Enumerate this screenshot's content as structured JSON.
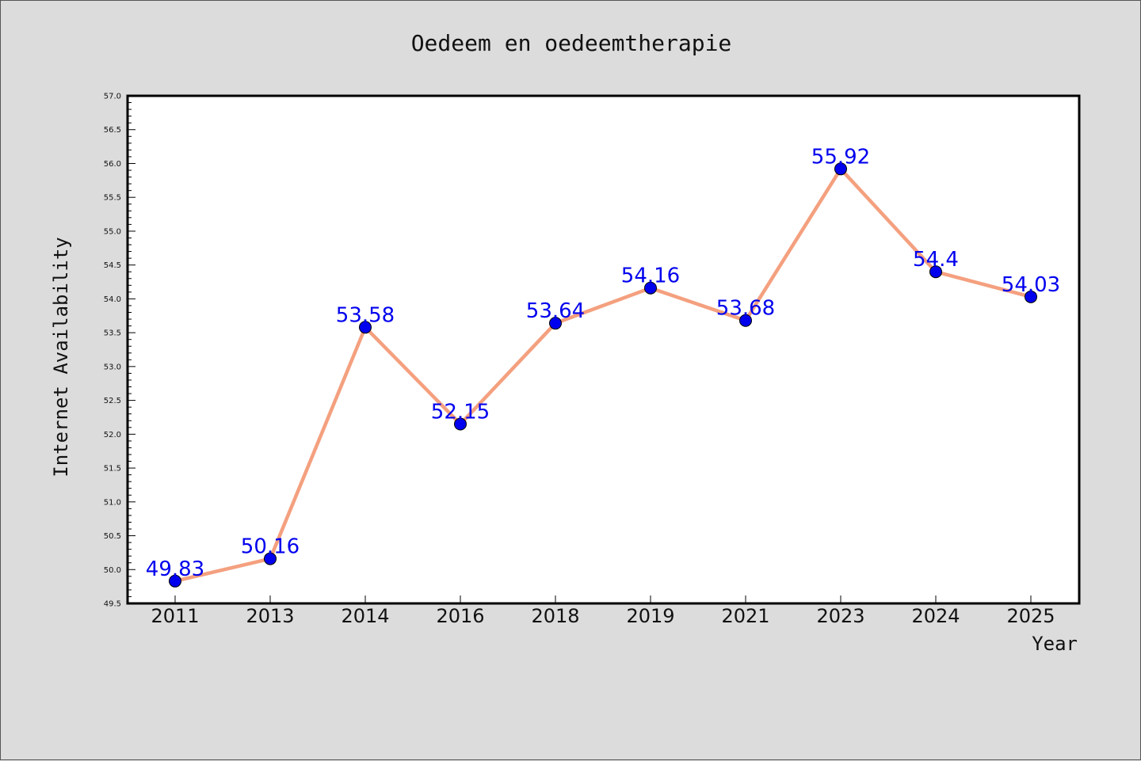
{
  "chart_data": {
    "type": "line",
    "title": "Oedeem en oedeemtherapie",
    "xlabel": "Year",
    "ylabel": "Internet Availability",
    "categories": [
      "2011",
      "2013",
      "2014",
      "2016",
      "2018",
      "2019",
      "2021",
      "2023",
      "2024",
      "2025"
    ],
    "series": [
      {
        "values": [
          49.83,
          50.16,
          53.58,
          52.15,
          53.64,
          54.16,
          53.68,
          55.92,
          54.4,
          54.03
        ],
        "labels": [
          "49.83",
          "50.16",
          "53.58",
          "52.15",
          "53.64",
          "54.16",
          "53.68",
          "55.92",
          "54.4",
          "54.03"
        ],
        "line_color": "#f4a07f",
        "marker_color": "#0000ee",
        "label_color": "#0000ee"
      }
    ],
    "ylim": [
      49.5,
      57.0
    ],
    "yticks": [
      "49.5",
      "50.0",
      "50.5",
      "51.0",
      "51.5",
      "52.0",
      "52.5",
      "53.0",
      "53.5",
      "54.0",
      "54.5",
      "55.0",
      "55.5",
      "56.0",
      "56.5",
      "57.0"
    ],
    "grid": false,
    "background": "#dcdcdc",
    "plot_background": "#ffffff"
  }
}
